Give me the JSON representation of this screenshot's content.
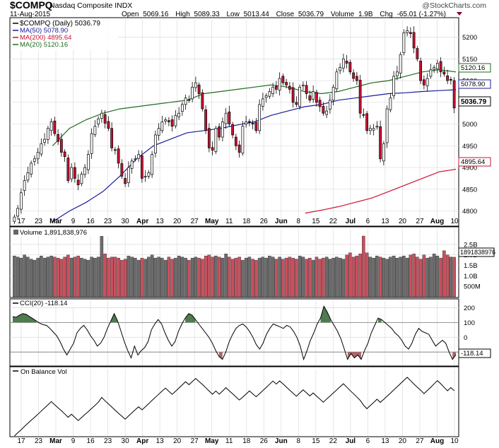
{
  "header": {
    "symbol": "$COMPQ",
    "name": "Nasdaq Composite INDX",
    "date": "11-Aug-2015",
    "open_label": "Open",
    "open": "5069.16",
    "high_label": "High",
    "high": "5089.33",
    "low_label": "Low",
    "low": "5013.44",
    "close_label": "Close",
    "close": "5036.79",
    "volume_label": "Volume",
    "volume": "1.9B",
    "chg_label": "Chg",
    "chg": "-65.01 (-1.27%)",
    "watermark": "@StockCharts.com"
  },
  "legend": {
    "main": "$COMPQ (Daily) 5036.79",
    "ma50": "MA(50) 5078.90",
    "ma200": "MA(200) 4895.64",
    "ma20": "MA(20) 5120.16"
  },
  "price_axis": {
    "ticks": [
      "5200",
      "5150",
      "5100",
      "5050",
      "5000",
      "4950",
      "4900",
      "4850",
      "4800"
    ],
    "value_tags": [
      "5120.16",
      "5078.90",
      "5036.79",
      "4895.64"
    ]
  },
  "volume_panel": {
    "label": "Volume 1,891,838,976",
    "ticks": [
      "2.5B",
      "2.0B",
      "1.5B",
      "1.0B",
      "500M"
    ],
    "value_tag": "1891838976"
  },
  "cci_panel": {
    "label": "CCI(20) -118.14",
    "ticks": [
      "200",
      "100",
      "0",
      "-100"
    ],
    "value_tag": "-118.14"
  },
  "obv_panel": {
    "label": "On Balance Vol"
  },
  "x_axis": {
    "labels": [
      "17",
      "23",
      "Mar",
      "9",
      "16",
      "23",
      "30",
      "Apr",
      "13",
      "20",
      "27",
      "May",
      "11",
      "18",
      "26",
      "Jun",
      "8",
      "15",
      "22",
      "Jul",
      "6",
      "13",
      "20",
      "27",
      "Aug",
      "10"
    ]
  },
  "colors": {
    "up": "#ffffff",
    "down": "#cc1133",
    "ma50": "#1a1a99",
    "ma200": "#cc1133",
    "ma20": "#1d6b1d",
    "vol_up": "#6b6b6b",
    "vol_down": "#c8505e",
    "cci_fill_high": "#4f7b4f",
    "cci_fill_low": "#a8666c"
  },
  "chart_data": {
    "type": "candlestick",
    "symbol": "$COMPQ",
    "date_range": [
      "2015-02-12",
      "2015-08-11"
    ],
    "price_range": [
      4770,
      5240
    ],
    "last": {
      "date": "2015-08-11",
      "open": 5069.16,
      "high": 5089.33,
      "low": 5013.44,
      "close": 5036.79,
      "volume": 1891838976
    },
    "closes": [
      4786,
      4806,
      4842,
      4870,
      4888,
      4910,
      4920,
      4935,
      4955,
      4965,
      4990,
      5005,
      4978,
      4960,
      4935,
      4925,
      4870,
      4900,
      4875,
      4860,
      4885,
      4900,
      4930,
      4978,
      4995,
      5012,
      5025,
      5002,
      4990,
      4945,
      4940,
      4910,
      4880,
      4863,
      4900,
      4915,
      4920,
      4930,
      4875,
      4880,
      4888,
      4930,
      4975,
      4990,
      5005,
      5010,
      5005,
      4995,
      5020,
      5025,
      5045,
      5060,
      5055,
      5085,
      5095,
      5070,
      5035,
      4985,
      4945,
      4940,
      4990,
      4970,
      5005,
      5025,
      5000,
      4975,
      4950,
      4935,
      4995,
      5005,
      5005,
      5000,
      4985,
      5045,
      5058,
      5065,
      5075,
      5085,
      5080,
      5105,
      5095,
      5090,
      5080,
      5050,
      5045,
      5085,
      5090,
      5070,
      5055,
      5075,
      5050,
      5040,
      5025,
      5030,
      5055,
      5085,
      5120,
      5130,
      5150,
      5140,
      5120,
      5105,
      5100,
      5025,
      5020,
      4985,
      4990,
      4990,
      4995,
      4920,
      4955,
      5035,
      5060,
      5110,
      5120,
      5160,
      5210,
      5215,
      5208,
      5175,
      5150,
      5100,
      5090,
      5105,
      5125,
      5130,
      5140,
      5120,
      5115,
      5100,
      5101,
      5037
    ],
    "ma20": [
      4950,
      4990,
      5010,
      5025,
      5035,
      5040,
      5045,
      5050,
      5055,
      5070,
      5075,
      5080,
      5085,
      5090,
      5085,
      5075,
      5070,
      5075,
      5085,
      5095,
      5100,
      5110,
      5120,
      5125,
      5120
    ],
    "ma50": [
      4775,
      4800,
      4820,
      4845,
      4880,
      4920,
      4950,
      4965,
      4980,
      4985,
      4990,
      4998,
      5005,
      5020,
      5030,
      5040,
      5045,
      5055,
      5060,
      5065,
      5070,
      5072,
      5075,
      5077,
      5079
    ],
    "ma200": [
      4795,
      4802,
      4810,
      4820,
      4830,
      4845,
      4860,
      4875,
      4890,
      4896
    ],
    "volume_range_b": [
      0,
      2.9
    ],
    "volume_b": [
      1.95,
      1.9,
      1.85,
      2.0,
      1.9,
      1.8,
      1.75,
      1.85,
      1.95,
      1.85,
      1.9,
      1.95,
      1.9,
      1.85,
      1.8,
      1.9,
      2.0,
      1.85,
      1.9,
      1.95,
      1.85,
      1.8,
      1.75,
      1.9,
      1.85,
      1.9,
      2.9,
      2.05,
      1.85,
      1.9,
      1.9,
      1.85,
      1.75,
      1.8,
      1.95,
      1.9,
      1.85,
      1.75,
      1.85,
      1.8,
      1.9,
      2.0,
      1.85,
      1.9,
      1.85,
      1.75,
      1.9,
      1.8,
      1.85,
      1.95,
      1.9,
      1.85,
      1.75,
      1.85,
      1.9,
      1.85,
      1.8,
      1.95,
      2.0,
      1.9,
      1.95,
      1.9,
      1.85,
      2.05,
      1.9,
      1.8,
      1.85,
      1.9,
      1.75,
      1.85,
      1.9,
      1.8,
      1.75,
      1.85,
      1.9,
      1.85,
      1.95,
      1.9,
      1.8,
      1.9,
      1.8,
      1.85,
      1.9,
      1.85,
      1.8,
      1.95,
      1.9,
      1.8,
      1.85,
      1.75,
      1.9,
      1.8,
      1.85,
      1.9,
      1.8,
      1.85,
      1.9,
      1.85,
      1.8,
      2.0,
      2.1,
      1.9,
      1.95,
      2.05,
      2.9,
      2.1,
      1.9,
      1.85,
      1.95,
      1.9,
      1.85,
      1.8,
      1.9,
      1.95,
      1.85,
      1.9,
      1.95,
      1.85,
      2.0,
      2.05,
      1.9,
      1.8,
      2.0,
      1.85,
      1.9,
      2.05,
      1.95,
      1.85,
      2.2,
      2.0,
      1.9,
      1.89
    ],
    "cci_range": [
      -190,
      250
    ],
    "cci": [
      140,
      135,
      150,
      160,
      155,
      140,
      125,
      110,
      95,
      85,
      80,
      60,
      35,
      10,
      -30,
      -80,
      -120,
      -80,
      -40,
      30,
      60,
      80,
      50,
      10,
      -20,
      -60,
      -40,
      0,
      60,
      110,
      160,
      110,
      40,
      -30,
      -90,
      -140,
      -60,
      -120,
      -90,
      -70,
      -30,
      50,
      90,
      120,
      90,
      30,
      -20,
      -60,
      -30,
      40,
      90,
      130,
      160,
      150,
      120,
      90,
      60,
      30,
      0,
      -40,
      -90,
      -130,
      -150,
      -100,
      -30,
      20,
      60,
      80,
      90,
      70,
      40,
      0,
      -50,
      -80,
      -40,
      20,
      60,
      90,
      80,
      70,
      60,
      80,
      70,
      40,
      0,
      -60,
      -150,
      -90,
      -20,
      30,
      90,
      130,
      210,
      170,
      120,
      80,
      40,
      -10,
      -80,
      -150,
      -110,
      -140,
      -120,
      -150,
      -90,
      -40,
      30,
      80,
      130,
      120,
      100,
      80,
      60,
      30,
      10,
      -20,
      -60,
      -80,
      -40,
      20,
      60,
      40,
      30,
      20,
      -20,
      -60,
      -40,
      -20,
      -40,
      -100,
      -150,
      -118
    ]
  }
}
